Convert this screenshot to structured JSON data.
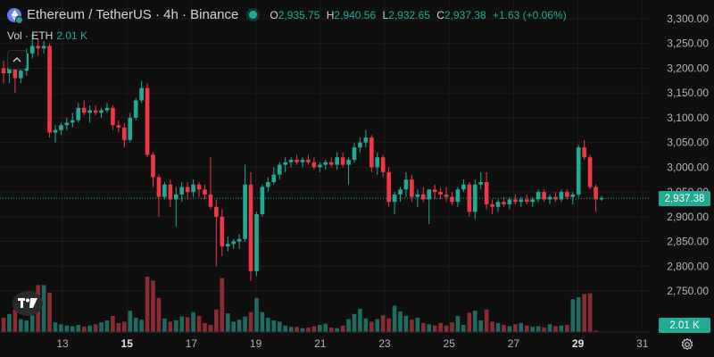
{
  "header": {
    "title": "Ethereum / TetherUS · 4h · Binance",
    "ohlc": [
      {
        "k": "O",
        "v": "2,935.75"
      },
      {
        "k": "H",
        "v": "2,940.56"
      },
      {
        "k": "L",
        "v": "2,932.65"
      },
      {
        "k": "C",
        "v": "2,937.38"
      }
    ],
    "change": "+1.63 (+0.06%)",
    "vol_label": "Vol · ETH",
    "vol_value": "2.01 K"
  },
  "price_tag": "2,937.38",
  "volume_tag": "2.01 K",
  "icons": {
    "symbol": "ethereum-icon",
    "collapse": "chevron-up-icon",
    "settings": "gear-icon",
    "logo": "tradingview-logo-icon"
  },
  "colors": {
    "up": "#22ab94",
    "down": "#f23645",
    "up_vol": "#1f6b62",
    "down_vol": "#8a2d33",
    "background": "#0f0f0f"
  },
  "chart_data": {
    "type": "candlestick",
    "price_ticks": [
      3300,
      3250,
      3200,
      3150,
      3100,
      3050,
      3000,
      2950,
      2900,
      2850,
      2800,
      2750
    ],
    "price_tick_labels": [
      "3,300.00",
      "3,250.00",
      "3,200.00",
      "3,150.00",
      "3,100.00",
      "3,050.00",
      "3,000.00",
      "2,950.00",
      "2,900.00",
      "2,850.00",
      "2,800.00",
      "2,750.00"
    ],
    "ylim": [
      2730,
      3320
    ],
    "x_labels": [
      "13",
      "15",
      "17",
      "19",
      "21",
      "23",
      "25",
      "27",
      "29",
      "31"
    ],
    "bold_x_labels": [
      "15",
      "29"
    ],
    "days_visible": [
      11.7,
      31.6
    ],
    "last_price": 2937.38,
    "candles": [
      {
        "o": 3200,
        "h": 3215,
        "l": 3170,
        "c": 3190
      },
      {
        "o": 3190,
        "h": 3210,
        "l": 3170,
        "c": 3205
      },
      {
        "o": 3205,
        "h": 3220,
        "l": 3150,
        "c": 3180
      },
      {
        "o": 3180,
        "h": 3205,
        "l": 3170,
        "c": 3195
      },
      {
        "o": 3195,
        "h": 3240,
        "l": 3185,
        "c": 3230
      },
      {
        "o": 3230,
        "h": 3270,
        "l": 3220,
        "c": 3245
      },
      {
        "o": 3245,
        "h": 3260,
        "l": 3225,
        "c": 3240
      },
      {
        "o": 3240,
        "h": 3255,
        "l": 3230,
        "c": 3245
      },
      {
        "o": 3245,
        "h": 3250,
        "l": 3060,
        "c": 3070
      },
      {
        "o": 3070,
        "h": 3085,
        "l": 3050,
        "c": 3075
      },
      {
        "o": 3075,
        "h": 3090,
        "l": 3065,
        "c": 3085
      },
      {
        "o": 3085,
        "h": 3100,
        "l": 3075,
        "c": 3090
      },
      {
        "o": 3090,
        "h": 3110,
        "l": 3080,
        "c": 3095
      },
      {
        "o": 3095,
        "h": 3130,
        "l": 3090,
        "c": 3120
      },
      {
        "o": 3120,
        "h": 3135,
        "l": 3105,
        "c": 3110
      },
      {
        "o": 3110,
        "h": 3125,
        "l": 3090,
        "c": 3115
      },
      {
        "o": 3115,
        "h": 3125,
        "l": 3105,
        "c": 3110
      },
      {
        "o": 3110,
        "h": 3120,
        "l": 3100,
        "c": 3115
      },
      {
        "o": 3115,
        "h": 3130,
        "l": 3110,
        "c": 3120
      },
      {
        "o": 3120,
        "h": 3125,
        "l": 3075,
        "c": 3085
      },
      {
        "o": 3085,
        "h": 3095,
        "l": 3070,
        "c": 3080
      },
      {
        "o": 3080,
        "h": 3090,
        "l": 3040,
        "c": 3055
      },
      {
        "o": 3055,
        "h": 3110,
        "l": 3050,
        "c": 3100
      },
      {
        "o": 3100,
        "h": 3140,
        "l": 3095,
        "c": 3135
      },
      {
        "o": 3135,
        "h": 3175,
        "l": 3130,
        "c": 3160
      },
      {
        "o": 3160,
        "h": 3170,
        "l": 3020,
        "c": 3025
      },
      {
        "o": 3025,
        "h": 3030,
        "l": 2960,
        "c": 2980
      },
      {
        "o": 2980,
        "h": 2985,
        "l": 2900,
        "c": 2940
      },
      {
        "o": 2940,
        "h": 2970,
        "l": 2935,
        "c": 2965
      },
      {
        "o": 2965,
        "h": 2975,
        "l": 2920,
        "c": 2935
      },
      {
        "o": 2935,
        "h": 2960,
        "l": 2880,
        "c": 2945
      },
      {
        "o": 2945,
        "h": 2970,
        "l": 2930,
        "c": 2960
      },
      {
        "o": 2960,
        "h": 2970,
        "l": 2935,
        "c": 2950
      },
      {
        "o": 2950,
        "h": 2975,
        "l": 2940,
        "c": 2965
      },
      {
        "o": 2965,
        "h": 2970,
        "l": 2940,
        "c": 2955
      },
      {
        "o": 2955,
        "h": 2965,
        "l": 2935,
        "c": 2945
      },
      {
        "o": 2945,
        "h": 3020,
        "l": 2915,
        "c": 2920
      },
      {
        "o": 2920,
        "h": 2935,
        "l": 2800,
        "c": 2900
      },
      {
        "o": 2900,
        "h": 2915,
        "l": 2820,
        "c": 2840
      },
      {
        "o": 2840,
        "h": 2860,
        "l": 2830,
        "c": 2845
      },
      {
        "o": 2845,
        "h": 2855,
        "l": 2835,
        "c": 2850
      },
      {
        "o": 2850,
        "h": 2865,
        "l": 2835,
        "c": 2855
      },
      {
        "o": 2855,
        "h": 3005,
        "l": 2850,
        "c": 2965
      },
      {
        "o": 2965,
        "h": 2990,
        "l": 2770,
        "c": 2790
      },
      {
        "o": 2790,
        "h": 2910,
        "l": 2780,
        "c": 2905
      },
      {
        "o": 2905,
        "h": 2965,
        "l": 2900,
        "c": 2960
      },
      {
        "o": 2960,
        "h": 2980,
        "l": 2950,
        "c": 2970
      },
      {
        "o": 2970,
        "h": 3000,
        "l": 2965,
        "c": 2985
      },
      {
        "o": 2985,
        "h": 3010,
        "l": 2975,
        "c": 3005
      },
      {
        "o": 3005,
        "h": 3020,
        "l": 2990,
        "c": 3010
      },
      {
        "o": 3010,
        "h": 3020,
        "l": 3000,
        "c": 3015
      },
      {
        "o": 3015,
        "h": 3025,
        "l": 3005,
        "c": 3010
      },
      {
        "o": 3010,
        "h": 3020,
        "l": 3000,
        "c": 3015
      },
      {
        "o": 3015,
        "h": 3025,
        "l": 3005,
        "c": 3010
      },
      {
        "o": 3010,
        "h": 3020,
        "l": 2995,
        "c": 3000
      },
      {
        "o": 3000,
        "h": 3010,
        "l": 2990,
        "c": 3005
      },
      {
        "o": 3005,
        "h": 3015,
        "l": 2995,
        "c": 3010
      },
      {
        "o": 3010,
        "h": 3020,
        "l": 3000,
        "c": 3005
      },
      {
        "o": 3005,
        "h": 3030,
        "l": 2995,
        "c": 3020
      },
      {
        "o": 3020,
        "h": 3030,
        "l": 3000,
        "c": 3005
      },
      {
        "o": 3005,
        "h": 3020,
        "l": 2965,
        "c": 3015
      },
      {
        "o": 3015,
        "h": 3050,
        "l": 3010,
        "c": 3040
      },
      {
        "o": 3040,
        "h": 3060,
        "l": 3030,
        "c": 3050
      },
      {
        "o": 3050,
        "h": 3075,
        "l": 3040,
        "c": 3060
      },
      {
        "o": 3060,
        "h": 3065,
        "l": 2990,
        "c": 3000
      },
      {
        "o": 3000,
        "h": 3030,
        "l": 2985,
        "c": 3020
      },
      {
        "o": 3020,
        "h": 3025,
        "l": 2980,
        "c": 2990
      },
      {
        "o": 2990,
        "h": 3000,
        "l": 2920,
        "c": 2930
      },
      {
        "o": 2930,
        "h": 2950,
        "l": 2905,
        "c": 2945
      },
      {
        "o": 2945,
        "h": 2960,
        "l": 2930,
        "c": 2955
      },
      {
        "o": 2955,
        "h": 2990,
        "l": 2940,
        "c": 2975
      },
      {
        "o": 2975,
        "h": 2985,
        "l": 2930,
        "c": 2940
      },
      {
        "o": 2940,
        "h": 2955,
        "l": 2920,
        "c": 2945
      },
      {
        "o": 2945,
        "h": 2960,
        "l": 2930,
        "c": 2935
      },
      {
        "o": 2935,
        "h": 2950,
        "l": 2885,
        "c": 2955
      },
      {
        "o": 2955,
        "h": 2965,
        "l": 2935,
        "c": 2950
      },
      {
        "o": 2950,
        "h": 2960,
        "l": 2935,
        "c": 2945
      },
      {
        "o": 2945,
        "h": 2960,
        "l": 2930,
        "c": 2940
      },
      {
        "o": 2940,
        "h": 2950,
        "l": 2925,
        "c": 2930
      },
      {
        "o": 2930,
        "h": 2960,
        "l": 2920,
        "c": 2955
      },
      {
        "o": 2955,
        "h": 2975,
        "l": 2950,
        "c": 2965
      },
      {
        "o": 2965,
        "h": 2970,
        "l": 2900,
        "c": 2910
      },
      {
        "o": 2910,
        "h": 2975,
        "l": 2895,
        "c": 2965
      },
      {
        "o": 2965,
        "h": 2990,
        "l": 2955,
        "c": 2970
      },
      {
        "o": 2970,
        "h": 2990,
        "l": 2915,
        "c": 2925
      },
      {
        "o": 2925,
        "h": 2935,
        "l": 2905,
        "c": 2920
      },
      {
        "o": 2920,
        "h": 2935,
        "l": 2910,
        "c": 2930
      },
      {
        "o": 2930,
        "h": 2940,
        "l": 2920,
        "c": 2925
      },
      {
        "o": 2925,
        "h": 2940,
        "l": 2915,
        "c": 2935
      },
      {
        "o": 2935,
        "h": 2945,
        "l": 2925,
        "c": 2930
      },
      {
        "o": 2930,
        "h": 2940,
        "l": 2920,
        "c": 2935
      },
      {
        "o": 2935,
        "h": 2945,
        "l": 2925,
        "c": 2930
      },
      {
        "o": 2930,
        "h": 2940,
        "l": 2920,
        "c": 2935
      },
      {
        "o": 2935,
        "h": 2955,
        "l": 2930,
        "c": 2950
      },
      {
        "o": 2950,
        "h": 2955,
        "l": 2930,
        "c": 2935
      },
      {
        "o": 2935,
        "h": 2945,
        "l": 2925,
        "c": 2940
      },
      {
        "o": 2940,
        "h": 2950,
        "l": 2930,
        "c": 2935
      },
      {
        "o": 2935,
        "h": 2955,
        "l": 2930,
        "c": 2950
      },
      {
        "o": 2950,
        "h": 2955,
        "l": 2935,
        "c": 2940
      },
      {
        "o": 2940,
        "h": 2950,
        "l": 2925,
        "c": 2945
      },
      {
        "o": 2945,
        "h": 3045,
        "l": 2940,
        "c": 3040
      },
      {
        "o": 3040,
        "h": 3055,
        "l": 3015,
        "c": 3020
      },
      {
        "o": 3020,
        "h": 3025,
        "l": 2955,
        "c": 2960
      },
      {
        "o": 2960,
        "h": 2965,
        "l": 2910,
        "c": 2935
      },
      {
        "o": 2935,
        "h": 2942,
        "l": 2932,
        "c": 2937.38
      }
    ],
    "volume": [
      2.2,
      2.8,
      3.5,
      2.0,
      1.8,
      2.6,
      7.3,
      7.3,
      6.1,
      1.5,
      1.2,
      1.0,
      0.9,
      1.1,
      0.8,
      1.0,
      1.2,
      1.5,
      1.8,
      2.5,
      1.4,
      1.6,
      3.3,
      2.2,
      1.9,
      8.6,
      8.0,
      5.3,
      2.1,
      1.6,
      1.8,
      2.4,
      2.3,
      3.1,
      2.5,
      1.4,
      1.1,
      3.5,
      8.4,
      2.9,
      1.6,
      1.9,
      2.4,
      3.1,
      5.3,
      3.1,
      2.2,
      1.8,
      1.6,
      1.0,
      0.8,
      0.8,
      0.6,
      0.7,
      0.9,
      1.1,
      1.3,
      0.7,
      0.6,
      1.0,
      2.0,
      2.8,
      3.6,
      2.1,
      1.6,
      2.0,
      2.6,
      2.1,
      4.1,
      3.2,
      2.5,
      1.9,
      2.2,
      1.4,
      1.2,
      1.0,
      1.4,
      1.0,
      1.5,
      2.5,
      1.1,
      3.0,
      3.3,
      1.8,
      3.5,
      1.6,
      1.4,
      1.1,
      0.9,
      1.2,
      1.4,
      1.0,
      0.8,
      0.9,
      0.7,
      1.2,
      0.9,
      1.0,
      1.1,
      5.1,
      5.4,
      5.9,
      6.0,
      0.2
    ],
    "volume_max": 8.6
  }
}
